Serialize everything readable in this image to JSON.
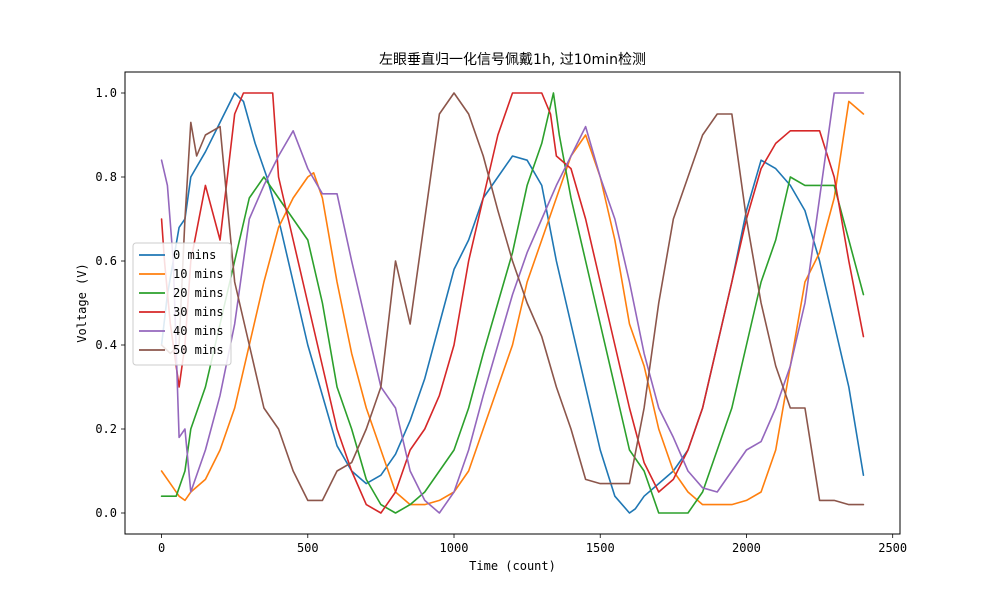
{
  "chart_data": {
    "type": "line",
    "title": "左眼垂直归一化信号佩戴1h, 过10min检测",
    "xlabel": "Time (count)",
    "ylabel": "Voltage (V)",
    "xlim": [
      -125,
      2525
    ],
    "ylim": [
      -0.05,
      1.05
    ],
    "xticks": [
      0,
      500,
      1000,
      1500,
      2000,
      2500
    ],
    "xtick_labels": [
      "0",
      "500",
      "1000",
      "1500",
      "2000",
      "2500"
    ],
    "yticks": [
      0.0,
      0.2,
      0.4,
      0.6,
      0.8,
      1.0
    ],
    "ytick_labels": [
      "0.0",
      "0.2",
      "0.4",
      "0.6",
      "0.8",
      "1.0"
    ],
    "grid": false,
    "legend_position": "center-left",
    "series": [
      {
        "name": "0 mins",
        "color": "#1f77b4",
        "x": [
          0,
          20,
          40,
          60,
          80,
          100,
          150,
          200,
          250,
          280,
          320,
          360,
          400,
          450,
          500,
          550,
          600,
          650,
          700,
          750,
          800,
          850,
          900,
          950,
          1000,
          1050,
          1100,
          1150,
          1200,
          1250,
          1300,
          1350,
          1400,
          1450,
          1500,
          1550,
          1600,
          1620,
          1650,
          1700,
          1750,
          1800,
          1850,
          1900,
          1950,
          2000,
          2050,
          2100,
          2150,
          2200,
          2250,
          2300,
          2350,
          2400
        ],
        "values": [
          0.4,
          0.52,
          0.6,
          0.68,
          0.7,
          0.8,
          0.86,
          0.93,
          1.0,
          0.98,
          0.88,
          0.8,
          0.7,
          0.55,
          0.4,
          0.28,
          0.16,
          0.1,
          0.07,
          0.09,
          0.14,
          0.22,
          0.32,
          0.45,
          0.58,
          0.65,
          0.75,
          0.8,
          0.85,
          0.84,
          0.78,
          0.6,
          0.45,
          0.3,
          0.15,
          0.04,
          0.0,
          0.01,
          0.04,
          0.07,
          0.1,
          0.15,
          0.25,
          0.4,
          0.55,
          0.72,
          0.84,
          0.82,
          0.78,
          0.72,
          0.6,
          0.45,
          0.3,
          0.09
        ]
      },
      {
        "name": "10 mins",
        "color": "#ff7f0e",
        "x": [
          0,
          30,
          60,
          80,
          100,
          150,
          200,
          250,
          300,
          350,
          400,
          450,
          500,
          520,
          550,
          600,
          650,
          700,
          750,
          800,
          850,
          900,
          950,
          1000,
          1050,
          1100,
          1150,
          1200,
          1250,
          1300,
          1350,
          1400,
          1450,
          1500,
          1550,
          1600,
          1650,
          1700,
          1750,
          1800,
          1850,
          1900,
          1950,
          2000,
          2050,
          2100,
          2150,
          2200,
          2250,
          2300,
          2350,
          2400
        ],
        "values": [
          0.1,
          0.07,
          0.04,
          0.03,
          0.05,
          0.08,
          0.15,
          0.25,
          0.4,
          0.55,
          0.68,
          0.75,
          0.8,
          0.81,
          0.75,
          0.55,
          0.38,
          0.25,
          0.15,
          0.05,
          0.02,
          0.02,
          0.03,
          0.05,
          0.1,
          0.2,
          0.3,
          0.4,
          0.55,
          0.65,
          0.75,
          0.85,
          0.9,
          0.8,
          0.65,
          0.45,
          0.35,
          0.2,
          0.1,
          0.05,
          0.02,
          0.02,
          0.02,
          0.03,
          0.05,
          0.15,
          0.35,
          0.55,
          0.62,
          0.75,
          0.98,
          0.95
        ]
      },
      {
        "name": "20 mins",
        "color": "#2ca02c",
        "x": [
          0,
          50,
          80,
          100,
          150,
          200,
          250,
          300,
          350,
          400,
          450,
          500,
          550,
          600,
          650,
          700,
          750,
          800,
          850,
          900,
          950,
          1000,
          1050,
          1100,
          1150,
          1200,
          1250,
          1300,
          1340,
          1360,
          1400,
          1450,
          1500,
          1550,
          1600,
          1650,
          1700,
          1750,
          1800,
          1850,
          1900,
          1950,
          2000,
          2050,
          2100,
          2150,
          2200,
          2250,
          2300,
          2350,
          2400
        ],
        "values": [
          0.04,
          0.04,
          0.1,
          0.2,
          0.3,
          0.45,
          0.6,
          0.75,
          0.8,
          0.75,
          0.7,
          0.65,
          0.5,
          0.3,
          0.2,
          0.08,
          0.02,
          0.0,
          0.02,
          0.05,
          0.1,
          0.15,
          0.25,
          0.38,
          0.5,
          0.62,
          0.78,
          0.88,
          1.0,
          0.9,
          0.75,
          0.6,
          0.45,
          0.3,
          0.15,
          0.1,
          0.0,
          0.0,
          0.0,
          0.05,
          0.15,
          0.25,
          0.4,
          0.55,
          0.65,
          0.8,
          0.78,
          0.78,
          0.78,
          0.65,
          0.52
        ]
      },
      {
        "name": "30 mins",
        "color": "#d62728",
        "x": [
          0,
          10,
          30,
          60,
          80,
          100,
          150,
          200,
          250,
          280,
          320,
          360,
          380,
          400,
          450,
          500,
          550,
          600,
          650,
          700,
          750,
          800,
          850,
          900,
          950,
          1000,
          1050,
          1100,
          1150,
          1200,
          1250,
          1300,
          1330,
          1350,
          1400,
          1450,
          1500,
          1550,
          1600,
          1650,
          1700,
          1750,
          1800,
          1850,
          1900,
          1950,
          2000,
          2050,
          2100,
          2150,
          2200,
          2250,
          2300,
          2350,
          2400
        ],
        "values": [
          0.7,
          0.6,
          0.45,
          0.3,
          0.4,
          0.6,
          0.78,
          0.65,
          0.95,
          1.0,
          1.0,
          1.0,
          1.0,
          0.8,
          0.65,
          0.5,
          0.35,
          0.2,
          0.1,
          0.02,
          0.0,
          0.05,
          0.15,
          0.2,
          0.28,
          0.4,
          0.6,
          0.75,
          0.9,
          1.0,
          1.0,
          1.0,
          0.95,
          0.85,
          0.82,
          0.7,
          0.55,
          0.4,
          0.25,
          0.12,
          0.05,
          0.08,
          0.15,
          0.25,
          0.4,
          0.55,
          0.7,
          0.82,
          0.88,
          0.91,
          0.91,
          0.91,
          0.8,
          0.6,
          0.42
        ]
      },
      {
        "name": "40 mins",
        "color": "#9467bd",
        "x": [
          0,
          20,
          40,
          60,
          80,
          100,
          150,
          200,
          250,
          300,
          350,
          400,
          450,
          500,
          550,
          600,
          650,
          700,
          750,
          800,
          850,
          900,
          950,
          1000,
          1050,
          1100,
          1150,
          1200,
          1250,
          1300,
          1350,
          1400,
          1450,
          1500,
          1550,
          1600,
          1650,
          1700,
          1750,
          1800,
          1850,
          1900,
          1950,
          2000,
          2050,
          2100,
          2150,
          2200,
          2250,
          2300,
          2350,
          2400
        ],
        "values": [
          0.84,
          0.78,
          0.6,
          0.18,
          0.2,
          0.05,
          0.15,
          0.28,
          0.45,
          0.7,
          0.78,
          0.85,
          0.91,
          0.82,
          0.76,
          0.76,
          0.6,
          0.45,
          0.3,
          0.25,
          0.1,
          0.03,
          0.0,
          0.05,
          0.15,
          0.28,
          0.4,
          0.52,
          0.62,
          0.7,
          0.78,
          0.85,
          0.92,
          0.8,
          0.7,
          0.55,
          0.38,
          0.25,
          0.18,
          0.1,
          0.06,
          0.05,
          0.1,
          0.15,
          0.17,
          0.25,
          0.35,
          0.5,
          0.75,
          1.0,
          1.0,
          1.0
        ]
      },
      {
        "name": "50 mins",
        "color": "#8c564b",
        "x": [
          0,
          30,
          60,
          80,
          100,
          120,
          150,
          200,
          250,
          300,
          350,
          400,
          450,
          500,
          550,
          600,
          650,
          700,
          750,
          800,
          850,
          900,
          950,
          1000,
          1050,
          1100,
          1150,
          1200,
          1250,
          1300,
          1350,
          1400,
          1450,
          1500,
          1550,
          1600,
          1650,
          1700,
          1750,
          1800,
          1850,
          1900,
          1950,
          2000,
          2050,
          2100,
          2150,
          2200,
          2250,
          2300,
          2350,
          2400
        ],
        "values": [
          0.4,
          0.38,
          0.4,
          0.7,
          0.93,
          0.85,
          0.9,
          0.92,
          0.55,
          0.4,
          0.25,
          0.2,
          0.1,
          0.03,
          0.03,
          0.1,
          0.12,
          0.2,
          0.3,
          0.6,
          0.45,
          0.7,
          0.95,
          1.0,
          0.95,
          0.85,
          0.72,
          0.6,
          0.5,
          0.42,
          0.3,
          0.2,
          0.08,
          0.07,
          0.07,
          0.07,
          0.25,
          0.5,
          0.7,
          0.8,
          0.9,
          0.95,
          0.95,
          0.7,
          0.5,
          0.35,
          0.25,
          0.25,
          0.03,
          0.03,
          0.02,
          0.02
        ]
      }
    ]
  }
}
